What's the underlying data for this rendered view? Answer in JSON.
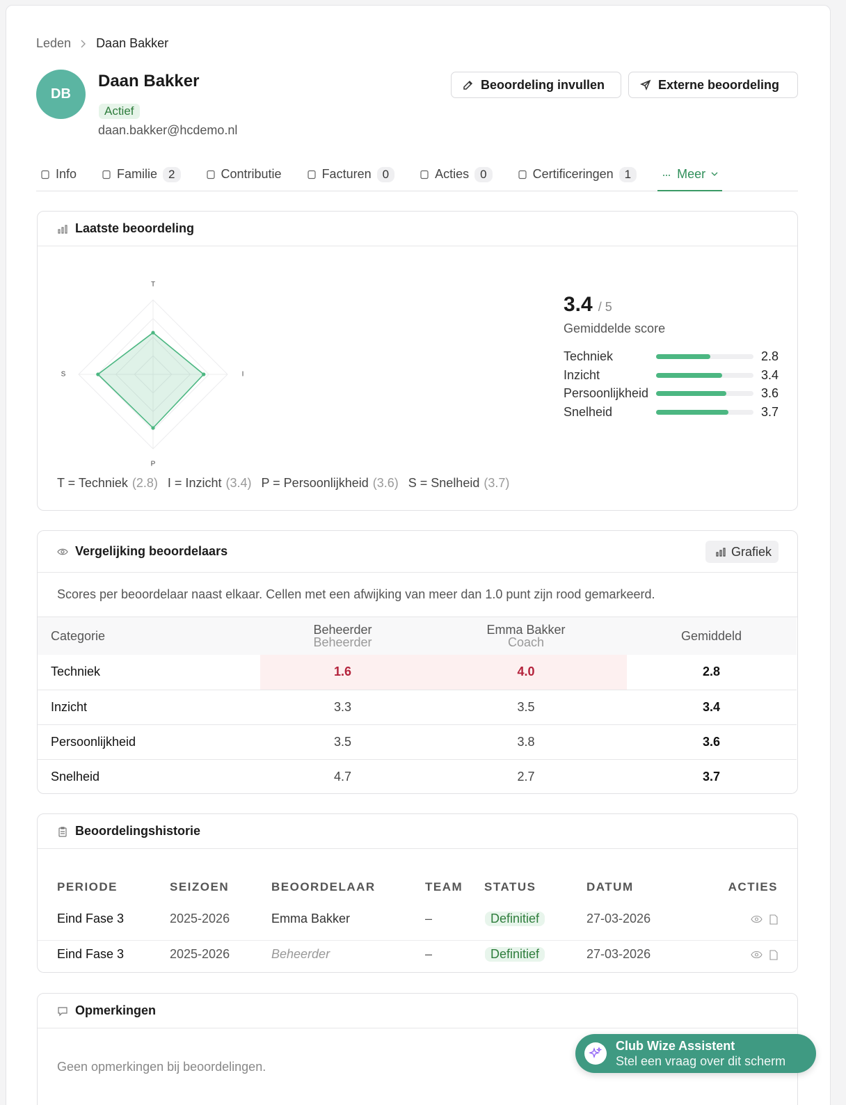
{
  "breadcrumb": {
    "parent": "Leden",
    "current": "Daan Bakker"
  },
  "profile": {
    "initials": "DB",
    "name": "Daan Bakker",
    "status": "Actief",
    "email": "daan.bakker@hcdemo.nl"
  },
  "buttons": [
    "Beoordeling invullen",
    "Externe beoordeling"
  ],
  "tabs": [
    {
      "label": "Info"
    },
    {
      "label": "Familie",
      "count": 2
    },
    {
      "label": "Contributie"
    },
    {
      "label": "Facturen",
      "count": 0
    },
    {
      "label": "Acties",
      "count": 0
    },
    {
      "label": "Certificeringen",
      "count": 1
    },
    {
      "label": "Meer",
      "active": true
    }
  ],
  "latest": {
    "title": "Laatste beoordeling",
    "score": 3.4,
    "score_max": "/ 5",
    "score_caption": "Gemiddelde score"
  },
  "chart_data": {
    "type": "radar",
    "axes": [
      "T",
      "I",
      "P",
      "S"
    ],
    "categories": [
      "Techniek",
      "Inzicht",
      "Persoonlijkheid",
      "Snelheid"
    ],
    "values": [
      2.8,
      3.4,
      3.6,
      3.7
    ],
    "value_labels": [
      "(2.8)",
      "(3.4)",
      "(3.6)",
      "(3.7)"
    ],
    "legend": [
      "T = Techniek",
      "I = Inzicht",
      "P = Persoonlijkheid",
      "S = Snelheid"
    ],
    "rlim": [
      0,
      5
    ],
    "color": "#4cb782"
  },
  "comparison": {
    "title": "Vergelijking beoordelaars",
    "button": "Grafiek",
    "description": "Scores per beoordelaar naast elkaar. Cellen met een afwijking van meer dan 1.0 punt zijn rood gemarkeerd.",
    "columns": [
      {
        "name": "Categorie"
      },
      {
        "name": "Beheerder",
        "role": "Beheerder"
      },
      {
        "name": "Emma Bakker",
        "role": "Coach"
      },
      {
        "name": "Gemiddeld"
      }
    ],
    "rows": [
      {
        "cells": [
          "Techniek",
          "1.6",
          "4.0",
          "2.8"
        ],
        "flagged": true
      },
      {
        "cells": [
          "Inzicht",
          "3.3",
          "3.5",
          "3.4"
        ]
      },
      {
        "cells": [
          "Persoonlijkheid",
          "3.5",
          "3.8",
          "3.6"
        ]
      },
      {
        "cells": [
          "Snelheid",
          "4.7",
          "2.7",
          "3.7"
        ]
      }
    ]
  },
  "history": {
    "title": "Beoordelingshistorie",
    "columns": [
      "PERIODE",
      "SEIZOEN",
      "BEOORDELAAR",
      "TEAM",
      "STATUS",
      "DATUM",
      "ACTIES"
    ],
    "rows": [
      {
        "cells": [
          "Eind Fase 3",
          "2025-2026",
          "Emma Bakker",
          "–",
          "Definitief",
          "27-03-2026"
        ]
      },
      {
        "cells": [
          "Eind Fase 3",
          "2025-2026",
          "Beheerder",
          "–",
          "Definitief",
          "27-03-2026"
        ],
        "assessor_italic": true
      }
    ]
  },
  "comments": {
    "title": "Opmerkingen",
    "empty": "Geen opmerkingen bij beoordelingen."
  },
  "assistant": {
    "title": "Club Wize Assistent",
    "subtitle": "Stel een vraag over dit scherm"
  }
}
